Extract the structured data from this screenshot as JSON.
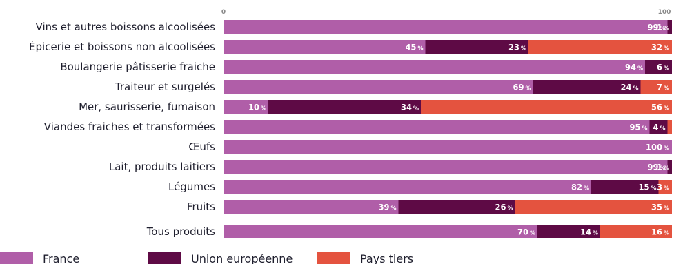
{
  "chart_data": {
    "type": "bar",
    "orientation": "horizontal",
    "stacked": true,
    "categories": [
      "Vins et autres boissons alcoolisées",
      "Épicerie et boissons non alcoolisées",
      "Boulangerie pâtisserie fraiche",
      "Traiteur et surgelés",
      "Mer, saurisserie, fumaison",
      "Viandes fraiches et transformées",
      "Œufs",
      "Lait, produits laitiers",
      "Légumes",
      "Fruits",
      "Tous produits"
    ],
    "series": [
      {
        "name": "France",
        "color": "#b05ea8",
        "values": [
          99,
          45,
          94,
          69,
          10,
          95,
          100,
          99,
          82,
          39,
          70
        ]
      },
      {
        "name": "Union européenne",
        "color": "#5e0a45",
        "values": [
          1,
          23,
          6,
          24,
          34,
          4,
          0,
          1,
          15,
          26,
          14
        ]
      },
      {
        "name": "Pays tiers",
        "color": "#e4533f",
        "values": [
          0,
          32,
          0,
          7,
          56,
          1,
          0,
          0,
          3,
          35,
          16
        ]
      }
    ],
    "labels": [
      [
        "99",
        "1",
        ""
      ],
      [
        "45",
        "23",
        "32"
      ],
      [
        "94",
        "6",
        ""
      ],
      [
        "69",
        "24",
        "7"
      ],
      [
        "10",
        "34",
        "56"
      ],
      [
        "95",
        "4",
        ""
      ],
      [
        "100",
        "",
        ""
      ],
      [
        "99",
        "1",
        ""
      ],
      [
        "82",
        "15",
        "3"
      ],
      [
        "39",
        "26",
        "35"
      ],
      [
        "70",
        "14",
        "16"
      ]
    ],
    "unit": "%",
    "xlim": [
      0,
      100
    ],
    "xticks": [
      "0",
      "100"
    ],
    "legend_position": "bottom-left"
  }
}
